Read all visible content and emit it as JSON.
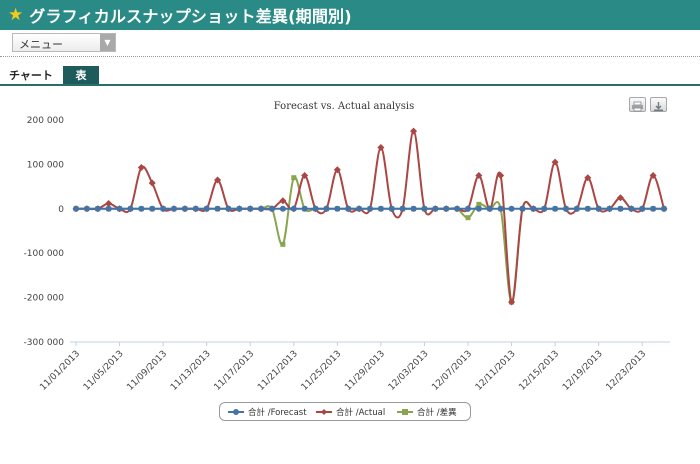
{
  "header": {
    "title": "グラフィカルスナップショット差異(期間別)",
    "icon": "star-icon"
  },
  "menu": {
    "label": "メニュー"
  },
  "tabs": [
    {
      "label": "チャート",
      "active": true
    },
    {
      "label": "表",
      "active": false
    }
  ],
  "toolbar": {
    "print_icon": "print-icon",
    "download_icon": "download-icon"
  },
  "colors": {
    "header": "#2a8b86",
    "forecast": "#4572a7",
    "actual": "#aa4643",
    "variance": "#89a54e"
  },
  "chart_data": {
    "type": "line",
    "title": "Forecast vs. Actual analysis",
    "ylim": [
      -300000,
      200000
    ],
    "yticks": [
      "200 000",
      "100 000",
      "0",
      "-100 000",
      "-200 000",
      "-300 000"
    ],
    "xticks": [
      "11/01/2013",
      "11/05/2013",
      "11/09/2013",
      "11/13/2013",
      "11/17/2013",
      "11/21/2013",
      "11/25/2013",
      "11/29/2013",
      "12/03/2013",
      "12/07/2013",
      "12/11/2013",
      "12/15/2013",
      "12/19/2013",
      "12/23/2013"
    ],
    "x_start": "11/01/2013",
    "series": [
      {
        "name": "合計 /Forecast",
        "values": [
          0,
          0,
          0,
          0,
          0,
          0,
          0,
          0,
          0,
          0,
          0,
          0,
          0,
          0,
          0,
          0,
          0,
          0,
          0,
          0,
          0,
          0,
          0,
          0,
          0,
          0,
          0,
          0,
          0,
          0,
          0,
          0,
          0,
          0,
          0,
          0,
          0,
          0,
          0,
          0,
          0,
          0,
          0,
          0,
          0,
          0,
          0,
          0,
          0,
          0,
          0,
          0,
          0,
          0,
          0
        ]
      },
      {
        "name": "合計 /Actual",
        "values": [
          0,
          0,
          0,
          12000,
          0,
          0,
          93000,
          58000,
          0,
          0,
          0,
          0,
          0,
          65000,
          0,
          0,
          0,
          0,
          0,
          18000,
          0,
          75000,
          0,
          0,
          88000,
          0,
          0,
          0,
          138000,
          0,
          0,
          175000,
          0,
          0,
          0,
          0,
          0,
          75000,
          0,
          75000,
          -210000,
          0,
          0,
          0,
          105000,
          0,
          0,
          70000,
          0,
          0,
          25000,
          0,
          0,
          75000,
          0
        ]
      },
      {
        "name": "合計 /差異",
        "values": [
          0,
          0,
          0,
          0,
          0,
          0,
          0,
          0,
          0,
          0,
          0,
          0,
          0,
          0,
          0,
          0,
          0,
          0,
          0,
          -80000,
          70000,
          0,
          0,
          0,
          0,
          0,
          0,
          0,
          0,
          0,
          0,
          0,
          0,
          0,
          0,
          0,
          -20000,
          10000,
          0,
          0,
          -210000,
          0,
          0,
          0,
          0,
          0,
          0,
          0,
          0,
          0,
          0,
          0,
          0,
          0,
          0
        ]
      }
    ],
    "grid": false,
    "legend": "bottom-center"
  }
}
